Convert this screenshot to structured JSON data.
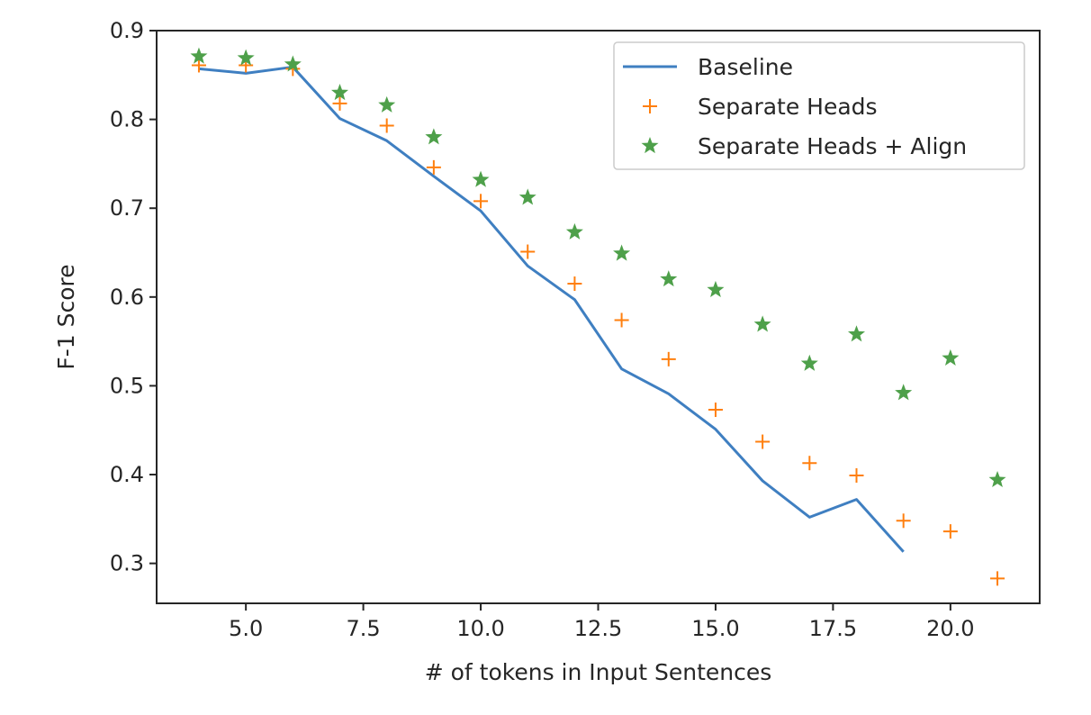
{
  "chart_data": {
    "type": "line",
    "xlabel": "# of tokens in Input Sentences",
    "ylabel": "F-1 Score",
    "xlim": [
      3.1,
      21.9
    ],
    "ylim": [
      0.255,
      0.9
    ],
    "x_ticks": [
      5.0,
      7.5,
      10.0,
      12.5,
      15.0,
      17.5,
      20.0
    ],
    "x_tick_labels": [
      "5.0",
      "7.5",
      "10.0",
      "12.5",
      "15.0",
      "17.5",
      "20.0"
    ],
    "y_ticks": [
      0.3,
      0.4,
      0.5,
      0.6,
      0.7,
      0.8,
      0.9
    ],
    "y_tick_labels": [
      "0.3",
      "0.4",
      "0.5",
      "0.6",
      "0.7",
      "0.8",
      "0.9"
    ],
    "grid": false,
    "legend_position": "upper right",
    "series": [
      {
        "name": "Baseline",
        "style": "line",
        "color": "#3f7fc1",
        "x": [
          4,
          5,
          6,
          7,
          8,
          9,
          10,
          11,
          12,
          13,
          14,
          15,
          16,
          17,
          18,
          19
        ],
        "y": [
          0.857,
          0.852,
          0.859,
          0.801,
          0.776,
          0.736,
          0.697,
          0.635,
          0.597,
          0.519,
          0.491,
          0.451,
          0.393,
          0.352,
          0.372,
          0.313
        ]
      },
      {
        "name": "Separate Heads",
        "style": "plus",
        "color": "#ff7f0e",
        "x": [
          4,
          5,
          6,
          7,
          8,
          9,
          10,
          11,
          12,
          13,
          14,
          15,
          16,
          17,
          18,
          19,
          20,
          21
        ],
        "y": [
          0.861,
          0.861,
          0.857,
          0.818,
          0.793,
          0.746,
          0.708,
          0.651,
          0.615,
          0.574,
          0.53,
          0.473,
          0.437,
          0.413,
          0.399,
          0.348,
          0.336,
          0.283
        ]
      },
      {
        "name": "Separate Heads + Align",
        "style": "star",
        "color": "#4ea04a",
        "x": [
          4,
          5,
          6,
          7,
          8,
          9,
          10,
          11,
          12,
          13,
          14,
          15,
          16,
          17,
          18,
          19,
          20,
          21
        ],
        "y": [
          0.871,
          0.869,
          0.862,
          0.83,
          0.816,
          0.78,
          0.732,
          0.712,
          0.673,
          0.649,
          0.62,
          0.608,
          0.569,
          0.525,
          0.558,
          0.492,
          0.531,
          0.394
        ]
      }
    ]
  }
}
